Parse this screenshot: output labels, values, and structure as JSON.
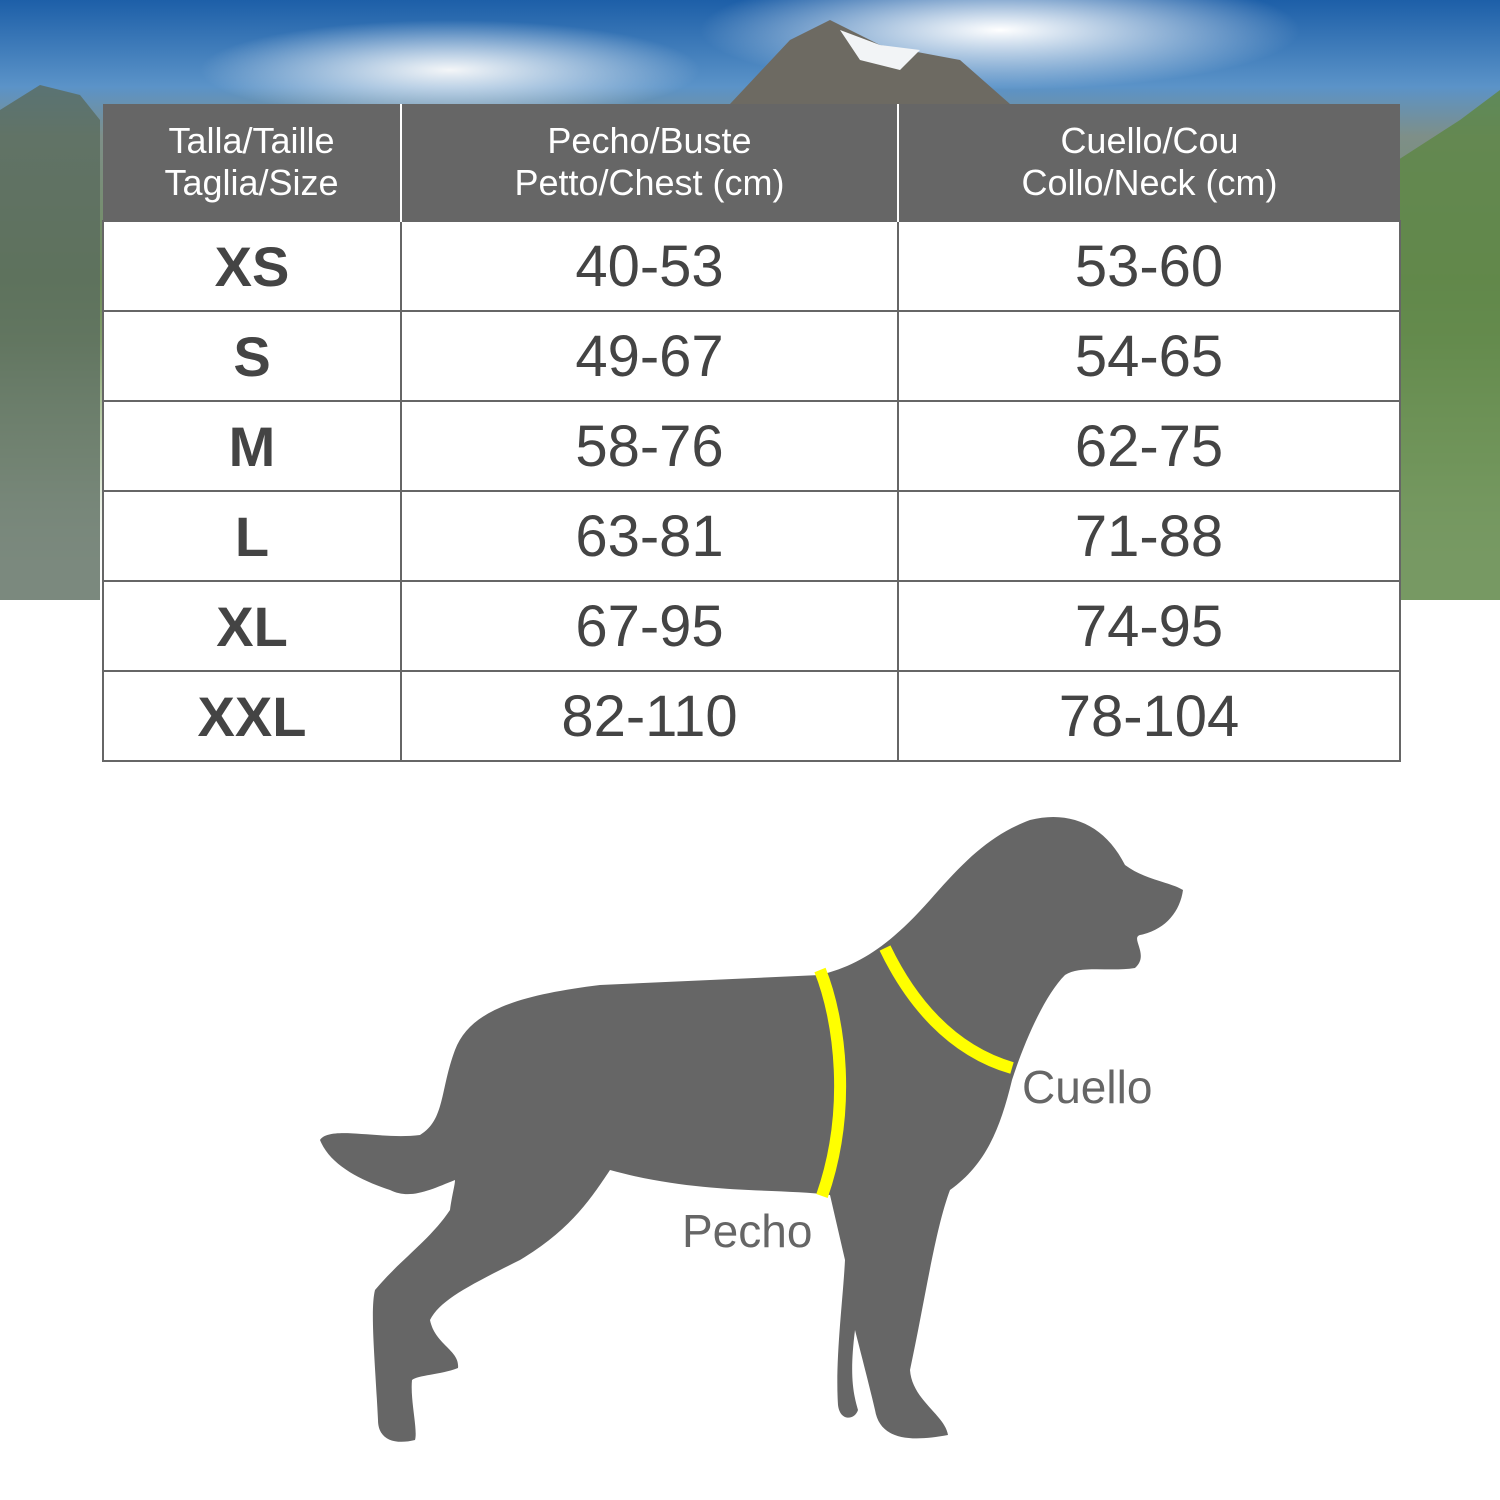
{
  "table": {
    "headers": [
      {
        "line1": "Talla/Taille",
        "line2": "Taglia/Size"
      },
      {
        "line1": "Pecho/Buste",
        "line2": "Petto/Chest (cm)"
      },
      {
        "line1": "Cuello/Cou",
        "line2": "Collo/Neck (cm)"
      }
    ],
    "rows": [
      {
        "size": "XS",
        "chest": "40-53",
        "neck": "53-60"
      },
      {
        "size": "S",
        "chest": "49-67",
        "neck": "54-65"
      },
      {
        "size": "M",
        "chest": "58-76",
        "neck": "62-75"
      },
      {
        "size": "L",
        "chest": "63-81",
        "neck": "71-88"
      },
      {
        "size": "XL",
        "chest": "67-95",
        "neck": "74-95"
      },
      {
        "size": "XXL",
        "chest": "82-110",
        "neck": "78-104"
      }
    ]
  },
  "diagram": {
    "neck_label": "Cuello",
    "chest_label": "Pecho",
    "silhouette_color": "#666666",
    "measure_line_color": "#ffff00"
  }
}
